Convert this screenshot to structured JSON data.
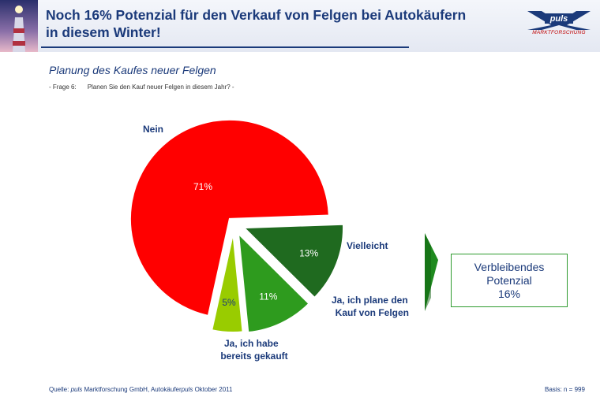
{
  "header": {
    "title_line1": "Noch 16% Potenzial für den Verkauf von Felgen bei Autokäufern",
    "title_line2": "in diesem Winter!",
    "logo_text": "puls",
    "logo_sub": "MARKTFORSCHUNG"
  },
  "subtitle": "Planung des Kaufes neuer Felgen",
  "question": {
    "prefix": "- Frage 6:",
    "text": "Planen Sie den Kauf neuer Felgen in diesem Jahr? -"
  },
  "chart_data": {
    "type": "pie",
    "exploded": true,
    "slices": [
      {
        "label": "Nein",
        "value": 71,
        "display": "71%",
        "color": "#ff0000"
      },
      {
        "label": "Vielleicht",
        "value": 5,
        "display": "5%",
        "color": "#99cc00"
      },
      {
        "label": "Ja, ich plane den Kauf von Felgen",
        "value": 11,
        "display": "11%",
        "color": "#2e9b1e"
      },
      {
        "label": "Ja, ich habe bereits gekauft",
        "value": 13,
        "display": "13%",
        "color": "#1f6a1f"
      }
    ],
    "label_lines": {
      "nein": [
        "Nein"
      ],
      "vielleicht": [
        "Vielleicht"
      ],
      "plane": [
        "Ja, ich plane den",
        "Kauf von Felgen"
      ],
      "gekauft": [
        "Ja, ich habe",
        "bereits gekauft"
      ]
    }
  },
  "potential_box": {
    "line1": "Verbleibendes",
    "line2": "Potenzial",
    "line3": "16%"
  },
  "footer": {
    "source_prefix": "Quelle: ",
    "source_brand": "puls",
    "source_text": " Marktforschung GmbH, Autokäufer",
    "source_brand2": "puls",
    "source_suffix": " Oktober 2011",
    "basis": "Basis: n = 999"
  },
  "colors": {
    "title": "#1b3a7a",
    "nein": "#ff0000",
    "vielleicht": "#99cc00",
    "plane": "#2e9b1e",
    "gekauft": "#1f6a1f",
    "arrow": "#1f8a1f"
  }
}
